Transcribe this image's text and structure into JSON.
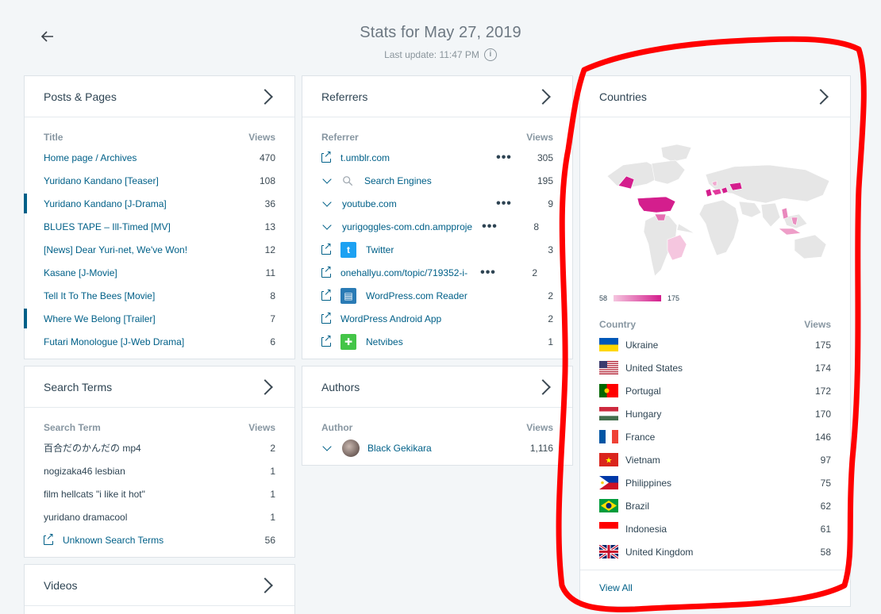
{
  "header": {
    "title": "Stats for May 27, 2019",
    "last_update": "Last update: 11:47 PM"
  },
  "posts": {
    "title": "Posts & Pages",
    "col_title": "Title",
    "col_views": "Views",
    "rows": [
      {
        "label": "Home page / Archives",
        "views": "470"
      },
      {
        "label": "Yuridano Kandano [Teaser]",
        "views": "108"
      },
      {
        "label": "Yuridano Kandano [J-Drama]",
        "views": "36"
      },
      {
        "label": "BLUES TAPE – Ill-Timed [MV]",
        "views": "13"
      },
      {
        "label": "[News] Dear Yuri-net, We've Won!",
        "views": "12"
      },
      {
        "label": "Kasane [J-Movie]",
        "views": "11"
      },
      {
        "label": "Tell It To The Bees [Movie]",
        "views": "8"
      },
      {
        "label": "Where We Belong [Trailer]",
        "views": "7"
      },
      {
        "label": "Futari Monologue [J-Web Drama]",
        "views": "6"
      }
    ]
  },
  "referrers": {
    "title": "Referrers",
    "col_title": "Referrer",
    "col_views": "Views",
    "rows": [
      {
        "label": "t.umblr.com",
        "views": "305"
      },
      {
        "label": "Search Engines",
        "views": "195"
      },
      {
        "label": "youtube.com",
        "views": "9"
      },
      {
        "label": "yurigoggles-com.cdn.ampproje",
        "views": "8"
      },
      {
        "label": "Twitter",
        "views": "3"
      },
      {
        "label": "onehallyu.com/topic/719352-i-",
        "views": "2"
      },
      {
        "label": "WordPress.com Reader",
        "views": "2"
      },
      {
        "label": "WordPress Android App",
        "views": "2"
      },
      {
        "label": "Netvibes",
        "views": "1"
      }
    ]
  },
  "search_terms": {
    "title": "Search Terms",
    "col_title": "Search Term",
    "col_views": "Views",
    "rows": [
      {
        "label": "百合だのかんだの mp4",
        "views": "2"
      },
      {
        "label": "nogizaka46 lesbian",
        "views": "1"
      },
      {
        "label": "film hellcats \"i like it hot\"",
        "views": "1"
      },
      {
        "label": "yuridano dramacool",
        "views": "1"
      },
      {
        "label": "Unknown Search Terms",
        "views": "56"
      }
    ]
  },
  "authors": {
    "title": "Authors",
    "col_title": "Author",
    "col_views": "Views",
    "rows": [
      {
        "label": "Black Gekikara",
        "views": "1,116"
      }
    ]
  },
  "videos": {
    "title": "Videos"
  },
  "countries": {
    "title": "Countries",
    "legend_min": "58",
    "legend_max": "175",
    "col_title": "Country",
    "col_views": "Views",
    "rows": [
      {
        "label": "Ukraine",
        "views": "175"
      },
      {
        "label": "United States",
        "views": "174"
      },
      {
        "label": "Portugal",
        "views": "172"
      },
      {
        "label": "Hungary",
        "views": "170"
      },
      {
        "label": "France",
        "views": "146"
      },
      {
        "label": "Vietnam",
        "views": "97"
      },
      {
        "label": "Philippines",
        "views": "75"
      },
      {
        "label": "Brazil",
        "views": "62"
      },
      {
        "label": "Indonesia",
        "views": "61"
      },
      {
        "label": "United Kingdom",
        "views": "58"
      }
    ],
    "view_all": "View All"
  },
  "colors": {
    "link": "#006088",
    "map_high": "#d41e8d",
    "map_low": "#f5c6df",
    "annotation": "#ff0000"
  }
}
